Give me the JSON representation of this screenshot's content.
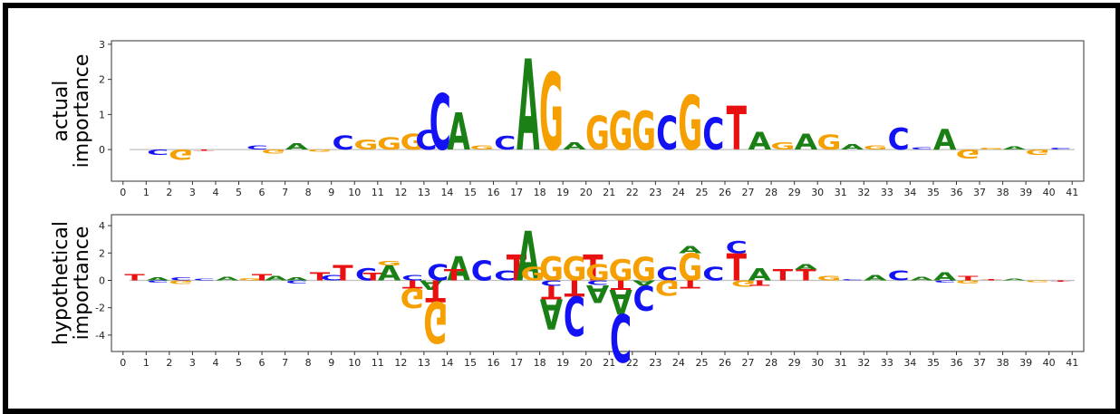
{
  "chart_data": [
    {
      "type": "sequence-logo",
      "ylabel_lines": [
        "actual",
        "importance"
      ],
      "ylim": [
        -0.9,
        3.1
      ],
      "yticks": [
        0,
        1,
        2,
        3
      ],
      "xticks": [
        0,
        1,
        2,
        3,
        4,
        5,
        6,
        7,
        8,
        9,
        10,
        11,
        12,
        13,
        14,
        15,
        16,
        17,
        18,
        19,
        20,
        21,
        22,
        23,
        24,
        25,
        26,
        27,
        28,
        29,
        30,
        31,
        32,
        33,
        34,
        35,
        36,
        37,
        38,
        39,
        40,
        41
      ],
      "letters": [
        {
          "pos": 1.5,
          "base": "C",
          "value": -0.15
        },
        {
          "pos": 2.5,
          "base": "G",
          "value": -0.3
        },
        {
          "pos": 3.5,
          "base": "T",
          "value": -0.03
        },
        {
          "pos": 5.8,
          "base": "C",
          "value": 0.12
        },
        {
          "pos": 6.5,
          "base": "G",
          "value": -0.12
        },
        {
          "pos": 7.5,
          "base": "A",
          "value": 0.18
        },
        {
          "pos": 8.5,
          "base": "G",
          "value": -0.06
        },
        {
          "pos": 9.5,
          "base": "C",
          "value": 0.4
        },
        {
          "pos": 10.5,
          "base": "G",
          "value": 0.28
        },
        {
          "pos": 11.5,
          "base": "G",
          "value": 0.35
        },
        {
          "pos": 12.5,
          "base": "G",
          "value": 0.45
        },
        {
          "pos": 13.1,
          "base": "C",
          "value": 0.55
        },
        {
          "pos": 13.7,
          "base": "C",
          "value": 1.6
        },
        {
          "pos": 14.5,
          "base": "A",
          "value": 1.05
        },
        {
          "pos": 15.5,
          "base": "G",
          "value": 0.12
        },
        {
          "pos": 16.5,
          "base": "C",
          "value": 0.38
        },
        {
          "pos": 17.5,
          "base": "A",
          "value": 2.6
        },
        {
          "pos": 18.5,
          "base": "G",
          "value": 2.2
        },
        {
          "pos": 19.5,
          "base": "A",
          "value": 0.2
        },
        {
          "pos": 20.5,
          "base": "G",
          "value": 0.95
        },
        {
          "pos": 21.5,
          "base": "G",
          "value": 1.1
        },
        {
          "pos": 22.5,
          "base": "G",
          "value": 1.1
        },
        {
          "pos": 23.5,
          "base": "C",
          "value": 0.95
        },
        {
          "pos": 24.5,
          "base": "G",
          "value": 1.55
        },
        {
          "pos": 25.5,
          "base": "C",
          "value": 0.9
        },
        {
          "pos": 26.5,
          "base": "T",
          "value": 1.25
        },
        {
          "pos": 27.5,
          "base": "A",
          "value": 0.5
        },
        {
          "pos": 28.5,
          "base": "G",
          "value": 0.2
        },
        {
          "pos": 29.5,
          "base": "A",
          "value": 0.45
        },
        {
          "pos": 30.5,
          "base": "G",
          "value": 0.42
        },
        {
          "pos": 31.5,
          "base": "A",
          "value": 0.15
        },
        {
          "pos": 32.5,
          "base": "G",
          "value": 0.12
        },
        {
          "pos": 33.5,
          "base": "C",
          "value": 0.62
        },
        {
          "pos": 34.5,
          "base": "C",
          "value": 0.06
        },
        {
          "pos": 35.5,
          "base": "A",
          "value": 0.58
        },
        {
          "pos": 36.5,
          "base": "G",
          "value": -0.25
        },
        {
          "pos": 37.5,
          "base": "G",
          "value": 0.05
        },
        {
          "pos": 38.5,
          "base": "A",
          "value": 0.08
        },
        {
          "pos": 39.5,
          "base": "G",
          "value": -0.15
        },
        {
          "pos": 40.5,
          "base": "C",
          "value": 0.04
        }
      ]
    },
    {
      "type": "sequence-logo",
      "ylabel_lines": [
        "hypothetical",
        "importance"
      ],
      "ylim": [
        -5.2,
        4.8
      ],
      "yticks": [
        -4,
        -2,
        0,
        2,
        4
      ],
      "xticks": [
        0,
        1,
        2,
        3,
        4,
        5,
        6,
        7,
        8,
        9,
        10,
        11,
        12,
        13,
        14,
        15,
        16,
        17,
        18,
        19,
        20,
        21,
        22,
        23,
        24,
        25,
        26,
        27,
        28,
        29,
        30,
        31,
        32,
        33,
        34,
        35,
        36,
        37,
        38,
        39,
        40,
        41
      ],
      "letters": [
        {
          "pos": 0.5,
          "base": "T",
          "value": 0.45
        },
        {
          "pos": 1.5,
          "base": "A",
          "value": 0.2
        },
        {
          "pos": 1.5,
          "base": "C",
          "value": -0.15
        },
        {
          "pos": 2.5,
          "base": "C",
          "value": 0.2
        },
        {
          "pos": 2.5,
          "base": "G",
          "value": -0.25
        },
        {
          "pos": 3.5,
          "base": "C",
          "value": 0.12
        },
        {
          "pos": 4.5,
          "base": "A",
          "value": 0.25
        },
        {
          "pos": 5.5,
          "base": "G",
          "value": 0.15
        },
        {
          "pos": 6.0,
          "base": "T",
          "value": 0.45
        },
        {
          "pos": 6.6,
          "base": "A",
          "value": 0.35
        },
        {
          "pos": 7.5,
          "base": "C",
          "value": -0.2
        },
        {
          "pos": 7.5,
          "base": "A",
          "value": 0.2
        },
        {
          "pos": 8.5,
          "base": "T",
          "value": 0.6
        },
        {
          "pos": 9.0,
          "base": "C",
          "value": 0.4
        },
        {
          "pos": 9.5,
          "base": "T",
          "value": 1.1
        },
        {
          "pos": 10.5,
          "base": "C",
          "value": 0.9
        },
        {
          "pos": 10.8,
          "base": "T",
          "value": 0.55
        },
        {
          "pos": 11.5,
          "base": "A",
          "value": 1.1
        },
        {
          "pos": 11.5,
          "base": "G",
          "value": 0.35
        },
        {
          "pos": 12.5,
          "base": "C",
          "value": 0.4
        },
        {
          "pos": 12.5,
          "base": "T",
          "value": -0.6
        },
        {
          "pos": 12.5,
          "base": "G",
          "value": -1.4
        },
        {
          "pos": 13.3,
          "base": "A",
          "value": -0.7
        },
        {
          "pos": 13.5,
          "base": "T",
          "value": -1.6
        },
        {
          "pos": 13.5,
          "base": "G",
          "value": -3.0
        },
        {
          "pos": 13.6,
          "base": "C",
          "value": 1.2
        },
        {
          "pos": 14.5,
          "base": "A",
          "value": 1.75
        },
        {
          "pos": 14.3,
          "base": "T",
          "value": 0.8
        },
        {
          "pos": 15.5,
          "base": "C",
          "value": 1.45
        },
        {
          "pos": 16.5,
          "base": "C",
          "value": 0.75
        },
        {
          "pos": 17.0,
          "base": "T",
          "value": 1.9
        },
        {
          "pos": 17.5,
          "base": "A",
          "value": 3.6
        },
        {
          "pos": 17.7,
          "base": "G",
          "value": 1.0
        },
        {
          "pos": 18.5,
          "base": "G",
          "value": 1.75
        },
        {
          "pos": 18.5,
          "base": "C",
          "value": -0.4
        },
        {
          "pos": 18.5,
          "base": "T",
          "value": -1.0
        },
        {
          "pos": 18.5,
          "base": "A",
          "value": -2.2
        },
        {
          "pos": 19.5,
          "base": "G",
          "value": 1.75
        },
        {
          "pos": 19.5,
          "base": "T",
          "value": -1.2
        },
        {
          "pos": 19.5,
          "base": "C",
          "value": -2.9
        },
        {
          "pos": 20.3,
          "base": "T",
          "value": 1.9
        },
        {
          "pos": 20.5,
          "base": "G",
          "value": 1.2
        },
        {
          "pos": 20.5,
          "base": "C",
          "value": -0.35
        },
        {
          "pos": 20.5,
          "base": "A",
          "value": -1.3
        },
        {
          "pos": 21.5,
          "base": "G",
          "value": 1.55
        },
        {
          "pos": 21.5,
          "base": "T",
          "value": -0.7
        },
        {
          "pos": 21.5,
          "base": "A",
          "value": -1.8
        },
        {
          "pos": 21.5,
          "base": "C",
          "value": -3.5
        },
        {
          "pos": 22.5,
          "base": "G",
          "value": 1.7
        },
        {
          "pos": 22.5,
          "base": "A",
          "value": -0.4
        },
        {
          "pos": 22.5,
          "base": "C",
          "value": -1.8
        },
        {
          "pos": 23.5,
          "base": "C",
          "value": 1.0
        },
        {
          "pos": 23.5,
          "base": "G",
          "value": -1.1
        },
        {
          "pos": 24.5,
          "base": "G",
          "value": 2.0
        },
        {
          "pos": 24.5,
          "base": "A",
          "value": 0.5
        },
        {
          "pos": 24.5,
          "base": "T",
          "value": -0.6
        },
        {
          "pos": 25.5,
          "base": "C",
          "value": 1.0
        },
        {
          "pos": 26.5,
          "base": "T",
          "value": 2.0
        },
        {
          "pos": 26.5,
          "base": "C",
          "value": 0.9
        },
        {
          "pos": 26.8,
          "base": "G",
          "value": -0.45
        },
        {
          "pos": 27.5,
          "base": "A",
          "value": 0.9
        },
        {
          "pos": 27.5,
          "base": "T",
          "value": -0.4
        },
        {
          "pos": 28.5,
          "base": "T",
          "value": 0.8
        },
        {
          "pos": 29.5,
          "base": "T",
          "value": 0.8
        },
        {
          "pos": 29.5,
          "base": "A",
          "value": 0.4
        },
        {
          "pos": 30.5,
          "base": "G",
          "value": 0.35
        },
        {
          "pos": 31.5,
          "base": "C",
          "value": 0.1
        },
        {
          "pos": 32.5,
          "base": "A",
          "value": 0.4
        },
        {
          "pos": 33.5,
          "base": "C",
          "value": 0.75
        },
        {
          "pos": 34.5,
          "base": "A",
          "value": 0.25
        },
        {
          "pos": 35.5,
          "base": "A",
          "value": 0.6
        },
        {
          "pos": 35.5,
          "base": "C",
          "value": -0.15
        },
        {
          "pos": 36.5,
          "base": "T",
          "value": 0.35
        },
        {
          "pos": 36.5,
          "base": "G",
          "value": -0.2
        },
        {
          "pos": 37.5,
          "base": "T",
          "value": 0.1
        },
        {
          "pos": 38.5,
          "base": "A",
          "value": 0.12
        },
        {
          "pos": 39.5,
          "base": "G",
          "value": -0.12
        },
        {
          "pos": 40.5,
          "base": "T",
          "value": -0.06
        }
      ]
    }
  ],
  "colors": {
    "A": "#1a7f14",
    "C": "#1212f5",
    "G": "#f5a000",
    "T": "#e81010"
  }
}
